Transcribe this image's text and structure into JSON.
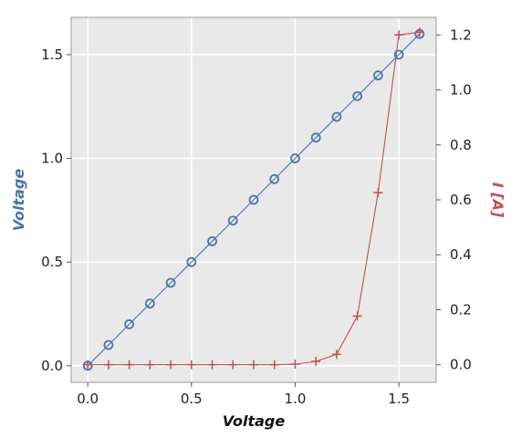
{
  "chart_data": {
    "type": "line",
    "xlabel": "Voltage",
    "ylabel_left": "Voltage",
    "ylabel_right": "I [A]",
    "xlim": [
      -0.08,
      1.68
    ],
    "ylim_left": [
      -0.08,
      1.68
    ],
    "ylim_right": [
      -0.064,
      1.264
    ],
    "x_ticks": [
      "0.0",
      "0.5",
      "1.0",
      "1.5"
    ],
    "y_left_ticks": [
      "0.0",
      "0.5",
      "1.0",
      "1.5"
    ],
    "y_right_ticks": [
      "0.0",
      "0.2",
      "0.4",
      "0.6",
      "0.8",
      "1.0",
      "1.2"
    ],
    "grid": true,
    "series": [
      {
        "axis": "left",
        "marker": "circle",
        "color": "#4c72b0",
        "x": [
          0.0,
          0.1,
          0.2,
          0.3,
          0.4,
          0.5,
          0.6,
          0.7,
          0.8,
          0.9,
          1.0,
          1.1,
          1.2,
          1.3,
          1.4,
          1.5,
          1.6
        ],
        "y": [
          0.0,
          0.1,
          0.2,
          0.3,
          0.4,
          0.5,
          0.6,
          0.7,
          0.8,
          0.9,
          1.0,
          1.1,
          1.2,
          1.3,
          1.4,
          1.5,
          1.6
        ]
      },
      {
        "axis": "right",
        "marker": "plus",
        "color": "#c44e52",
        "x": [
          0.0,
          0.1,
          0.2,
          0.3,
          0.4,
          0.5,
          0.6,
          0.7,
          0.8,
          0.9,
          1.0,
          1.1,
          1.2,
          1.3,
          1.4,
          1.5,
          1.6
        ],
        "y": [
          0.0,
          0.0,
          0.0,
          0.0,
          0.0,
          0.0,
          0.0,
          0.0,
          0.0,
          0.0,
          0.002,
          0.012,
          0.038,
          0.177,
          0.626,
          1.2,
          1.21
        ]
      }
    ]
  },
  "colors": {
    "plot_bg": "#e9e9e9",
    "grid": "#ffffff",
    "left_axis_title": "#4c72b0",
    "right_axis_title": "#c44e52",
    "frame": "#aaaaaa"
  }
}
